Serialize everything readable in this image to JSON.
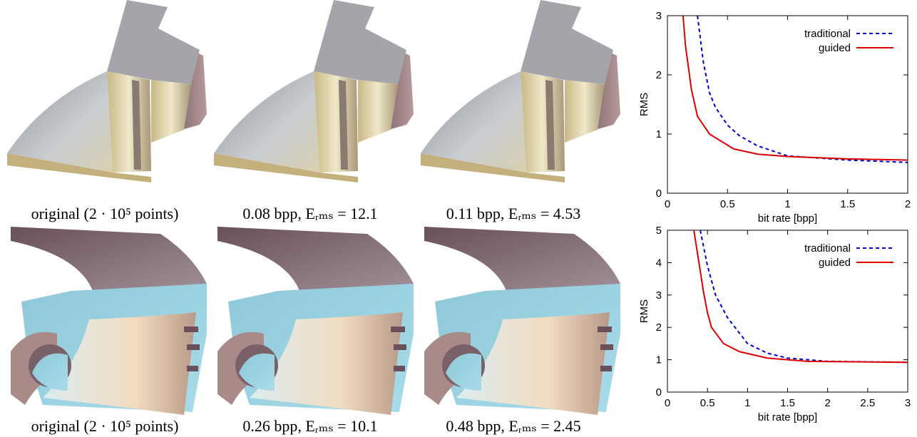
{
  "captions": [
    "original (2 · 10⁵ points)",
    "0.08 bpp, Eᵣₘₛ = 12.1",
    "0.11 bpp, Eᵣₘₛ = 4.53",
    "original (2 · 10⁵ points)",
    "0.26 bpp, Eᵣₘₛ = 10.1",
    "0.48 bpp, Eᵣₘₛ = 2.45"
  ],
  "chart_data": [
    {
      "type": "line",
      "xlabel": "bit rate [bpp]",
      "ylabel": "RMS",
      "xlim": [
        0,
        2
      ],
      "ylim": [
        0,
        3
      ],
      "xticks": [
        0,
        0.5,
        1,
        1.5,
        2
      ],
      "yticks": [
        0,
        1,
        2,
        3
      ],
      "legend": "upper right",
      "series": [
        {
          "name": "traditional",
          "color": "#0000cc",
          "linestyle": "dashed",
          "x": [
            0.25,
            0.3,
            0.35,
            0.4,
            0.5,
            0.6,
            0.75,
            1,
            1.5,
            2
          ],
          "values": [
            3,
            2.2,
            1.7,
            1.45,
            1.15,
            0.97,
            0.8,
            0.63,
            0.56,
            0.52
          ]
        },
        {
          "name": "guided",
          "color": "#dd0000",
          "linestyle": "solid",
          "x": [
            0.13,
            0.15,
            0.2,
            0.25,
            0.35,
            0.55,
            0.75,
            1,
            1.5,
            2
          ],
          "values": [
            3,
            2.5,
            1.75,
            1.3,
            1.0,
            0.75,
            0.66,
            0.62,
            0.58,
            0.56
          ]
        }
      ]
    },
    {
      "type": "line",
      "xlabel": "bit rate [bpp]",
      "ylabel": "RMS",
      "xlim": [
        0,
        3
      ],
      "ylim": [
        0,
        5
      ],
      "xticks": [
        0,
        0.5,
        1,
        1.5,
        2,
        2.5,
        3
      ],
      "yticks": [
        0,
        1,
        2,
        3,
        4,
        5
      ],
      "legend": "upper right",
      "series": [
        {
          "name": "traditional",
          "color": "#0000cc",
          "linestyle": "dashed",
          "x": [
            0.41,
            0.5,
            0.6,
            0.75,
            1,
            1.25,
            1.5,
            2,
            3
          ],
          "values": [
            5,
            3.9,
            3.0,
            2.3,
            1.5,
            1.2,
            1.05,
            0.95,
            0.92
          ]
        },
        {
          "name": "guided",
          "color": "#dd0000",
          "linestyle": "solid",
          "x": [
            0.33,
            0.4,
            0.45,
            0.5,
            0.55,
            0.7,
            0.9,
            1.25,
            1.75,
            3
          ],
          "values": [
            5,
            3.9,
            3.1,
            2.45,
            2.0,
            1.5,
            1.25,
            1.05,
            0.95,
            0.92
          ]
        }
      ]
    }
  ]
}
